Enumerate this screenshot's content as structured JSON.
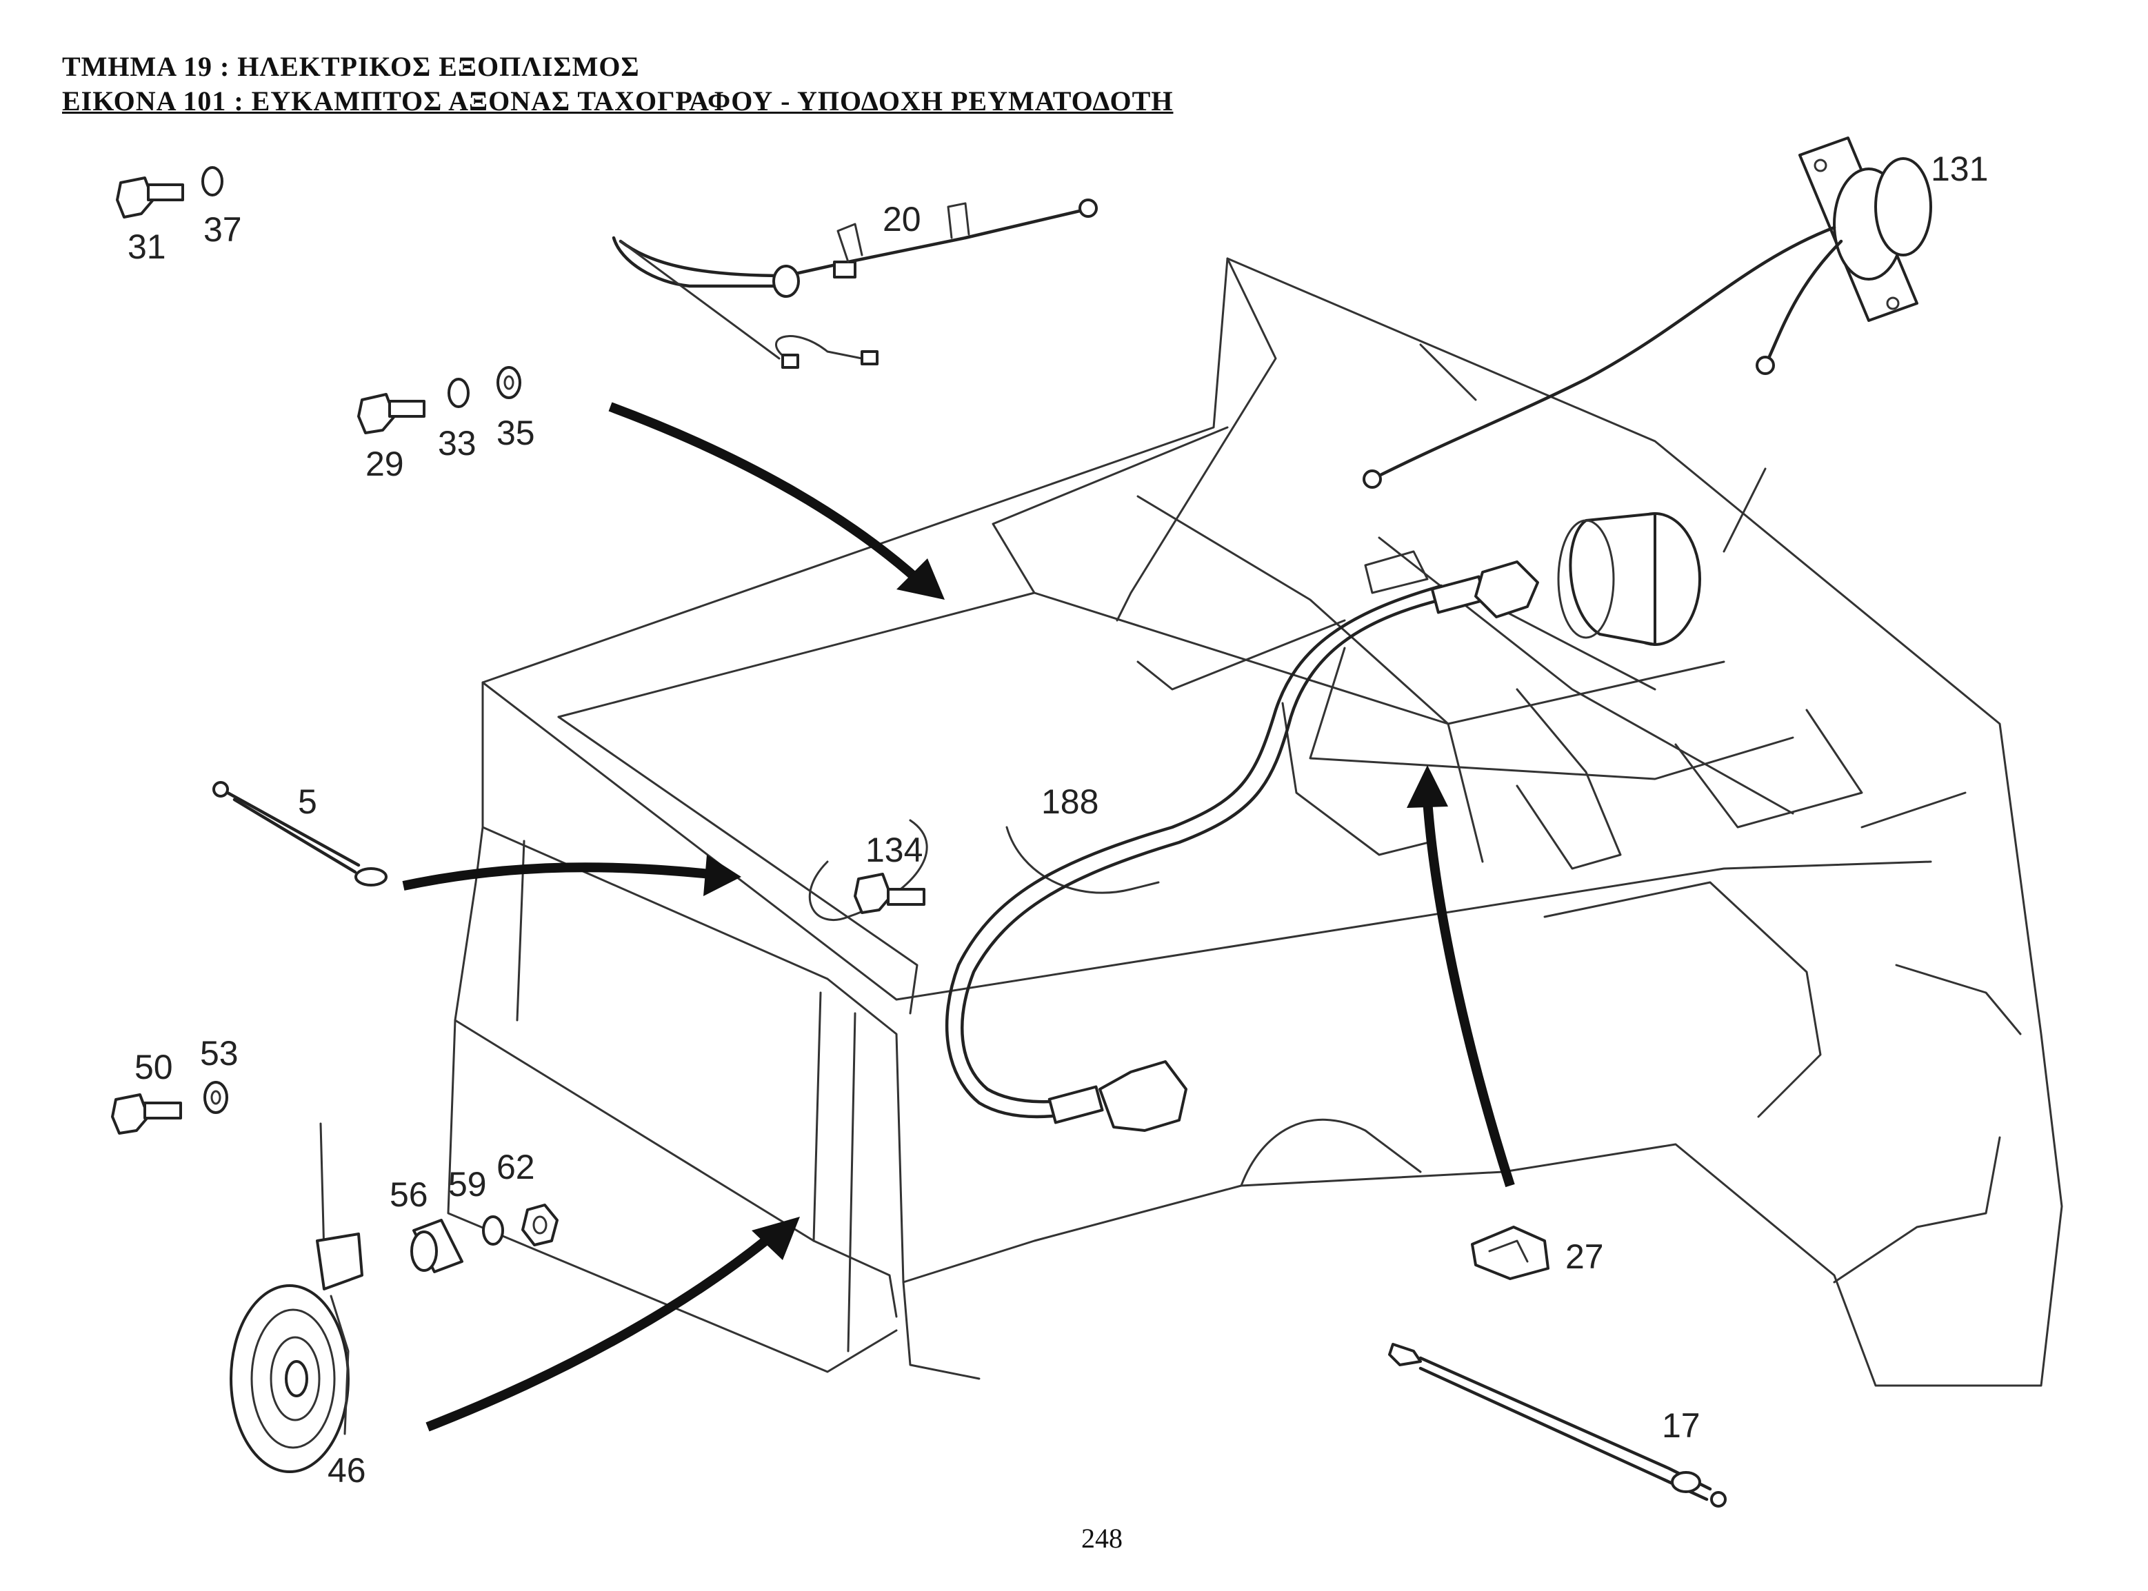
{
  "header": {
    "section_line": "ΤΜΗΜΑ   19  : ΗΛΕΚΤΡΙΚΟΣ ΕΞΟΠΛΙΣΜΟΣ",
    "figure_line": "ΕΙΚΟΝΑ  101 : ΕΥΚΑΜΠΤΟΣ ΑΞΟΝΑΣ ΤΑΧΟΓΡΑΦΟΥ - ΥΠΟΔΟΧΗ ΡΕΥΜΑΤΟΔΟΤΗ"
  },
  "part_labels": {
    "p31": "31",
    "p37": "37",
    "p20": "20",
    "p131": "131",
    "p29": "29",
    "p33": "33",
    "p35": "35",
    "p5": "5",
    "p134": "134",
    "p188": "188",
    "p50": "50",
    "p53": "53",
    "p56": "56",
    "p59": "59",
    "p62": "62",
    "p46": "46",
    "p27": "27",
    "p17": "17"
  },
  "page_number": "248"
}
